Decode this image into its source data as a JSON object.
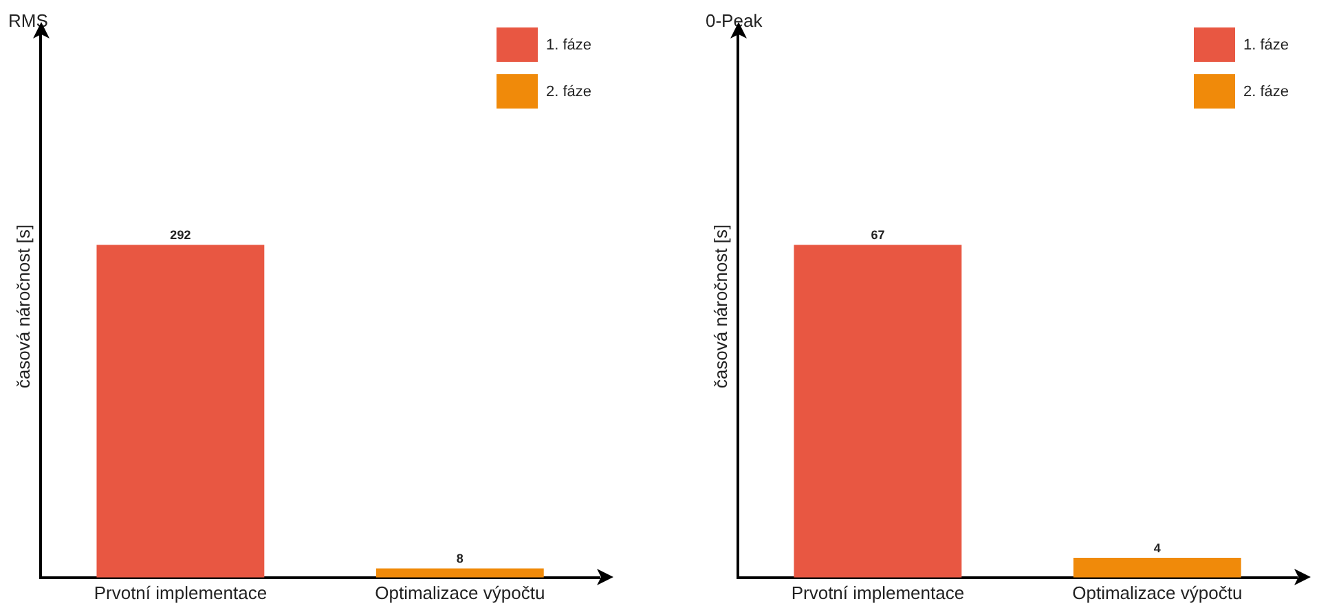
{
  "chart_data": [
    {
      "type": "bar",
      "title": "RMS",
      "ylabel": "časová náročnost [s]",
      "categories": [
        "Prvotní implementace",
        "Optimalizace výpočtu"
      ],
      "series": [
        {
          "name": "1. fáze",
          "color": "#e85742",
          "values": [
            292,
            null
          ]
        },
        {
          "name": "2. fáze",
          "color": "#f08a0a",
          "values": [
            null,
            8
          ]
        }
      ],
      "data_labels": true,
      "legend": "top right",
      "tick_labels": "x",
      "grid": false
    },
    {
      "type": "bar",
      "title": "0-Peak",
      "ylabel": "časová náročnost [s]",
      "categories": [
        "Prvotní implementace",
        "Optimalizace výpočtu"
      ],
      "series": [
        {
          "name": "1. fáze",
          "color": "#e85742",
          "values": [
            67,
            null
          ]
        },
        {
          "name": "2. fáze",
          "color": "#f08a0a",
          "values": [
            null,
            4
          ]
        }
      ],
      "data_labels": true,
      "legend": "top right",
      "tick_labels": "x",
      "grid": false
    }
  ]
}
